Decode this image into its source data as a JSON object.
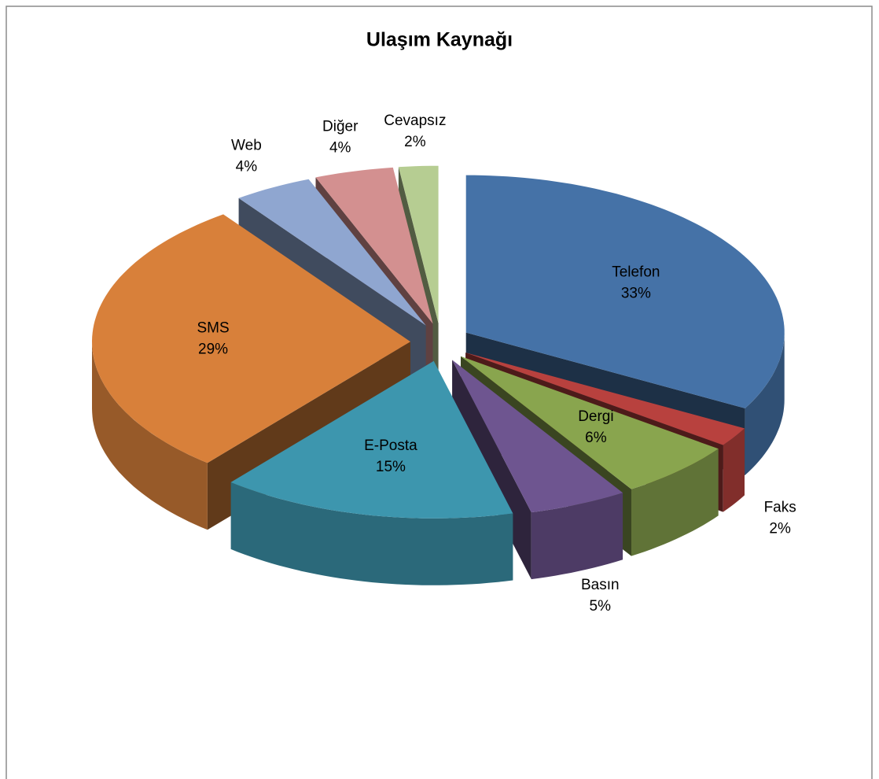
{
  "chart_data": {
    "type": "pie3d",
    "title": "Ulaşım Kaynağı",
    "categories": [
      "Telefon",
      "Faks",
      "Dergi",
      "Basın",
      "E-Posta",
      "SMS",
      "Web",
      "Diğer",
      "Cevapsız"
    ],
    "values": [
      33,
      2,
      6,
      5,
      15,
      29,
      4,
      4,
      2
    ],
    "value_labels": [
      "33%",
      "2%",
      "6%",
      "5%",
      "15%",
      "29%",
      "4%",
      "4%",
      "2%"
    ],
    "colors": [
      "#4572a7",
      "#b8413e",
      "#89a54e",
      "#6e5590",
      "#3d96ae",
      "#d8803a",
      "#8fa6d0",
      "#d39090",
      "#b6cd92"
    ]
  }
}
